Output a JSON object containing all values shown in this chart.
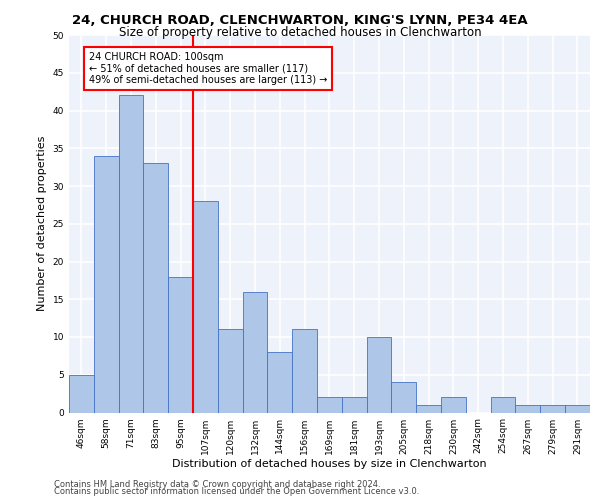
{
  "title1": "24, CHURCH ROAD, CLENCHWARTON, KING'S LYNN, PE34 4EA",
  "title2": "Size of property relative to detached houses in Clenchwarton",
  "xlabel": "Distribution of detached houses by size in Clenchwarton",
  "ylabel": "Number of detached properties",
  "categories": [
    "46sqm",
    "58sqm",
    "71sqm",
    "83sqm",
    "95sqm",
    "107sqm",
    "120sqm",
    "132sqm",
    "144sqm",
    "156sqm",
    "169sqm",
    "181sqm",
    "193sqm",
    "205sqm",
    "218sqm",
    "230sqm",
    "242sqm",
    "254sqm",
    "267sqm",
    "279sqm",
    "291sqm"
  ],
  "values": [
    5,
    34,
    42,
    33,
    18,
    28,
    11,
    16,
    8,
    11,
    2,
    2,
    10,
    4,
    1,
    2,
    0,
    2,
    1,
    1,
    1
  ],
  "bar_color": "#aec6e8",
  "bar_edge_color": "#4472c4",
  "ref_line_x": 4.5,
  "annotation_text": "24 CHURCH ROAD: 100sqm\n← 51% of detached houses are smaller (117)\n49% of semi-detached houses are larger (113) →",
  "annotation_box_color": "white",
  "annotation_box_edge": "red",
  "ref_line_color": "red",
  "ylim": [
    0,
    50
  ],
  "yticks": [
    0,
    5,
    10,
    15,
    20,
    25,
    30,
    35,
    40,
    45,
    50
  ],
  "footer1": "Contains HM Land Registry data © Crown copyright and database right 2024.",
  "footer2": "Contains public sector information licensed under the Open Government Licence v3.0.",
  "bg_color": "#eef2fa",
  "grid_color": "#ffffff",
  "title1_fontsize": 9.5,
  "title2_fontsize": 8.5,
  "axis_label_fontsize": 8,
  "tick_fontsize": 6.5,
  "footer_fontsize": 6.0,
  "ann_fontsize": 7.0
}
